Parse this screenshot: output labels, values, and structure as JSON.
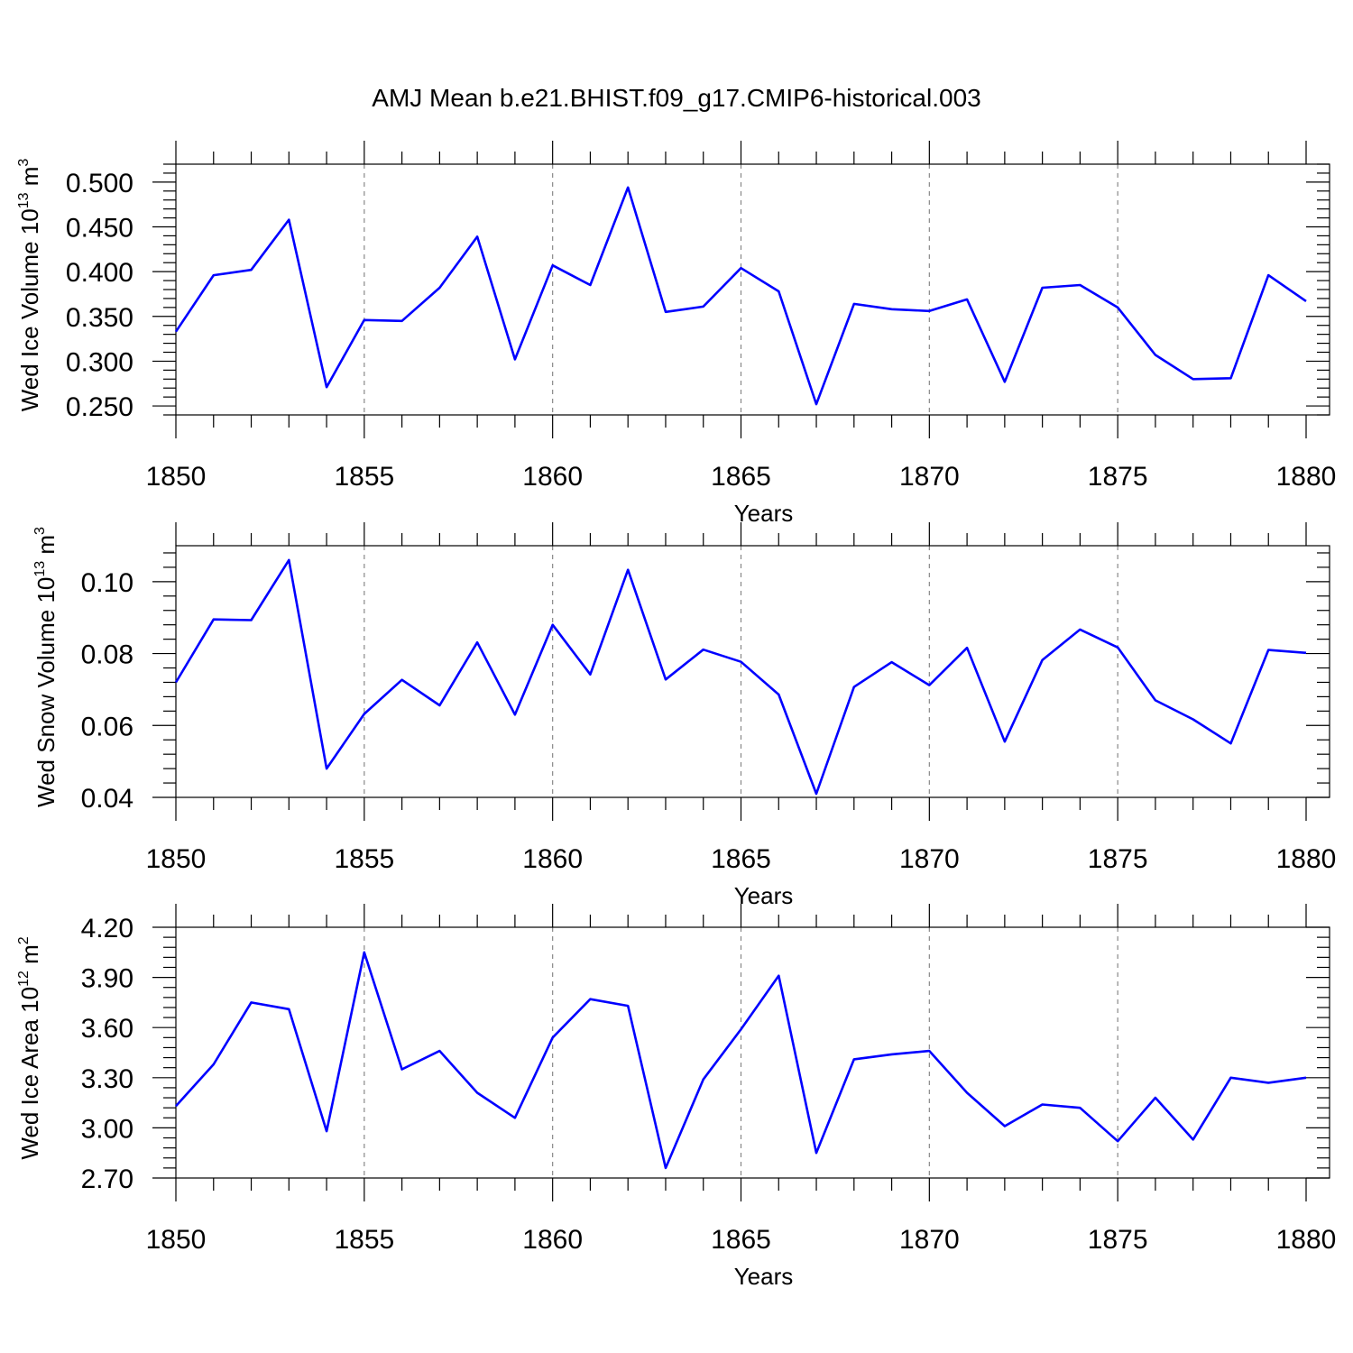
{
  "title": "AMJ Mean b.e21.BHIST.f09_g17.CMIP6-historical.003",
  "colors": {
    "line": "#0000ff",
    "grid": "#888888",
    "axis": "#000000"
  },
  "chart_data": [
    {
      "type": "line",
      "series_name": "Wed Ice Volume",
      "ylabel_main": "Wed Ice Volume 10",
      "ylabel_exp": "13",
      "ylabel_unit": " m",
      "ylabel_unit_exp": "3",
      "xlabel": "Years",
      "xlim": [
        1850,
        1880
      ],
      "ylim": [
        0.24,
        0.52
      ],
      "yticks": [
        0.25,
        0.3,
        0.35,
        0.4,
        0.45,
        0.5
      ],
      "ytick_labels": [
        "0.250",
        "0.300",
        "0.350",
        "0.400",
        "0.450",
        "0.500"
      ],
      "xticks": [
        1850,
        1855,
        1860,
        1865,
        1870,
        1875,
        1880
      ],
      "xtick_labels": [
        "1850",
        "1855",
        "1860",
        "1865",
        "1870",
        "1875",
        "1880"
      ],
      "grid_x": [
        1855,
        1860,
        1865,
        1870,
        1875
      ],
      "x": [
        1850,
        1851,
        1852,
        1853,
        1854,
        1855,
        1856,
        1857,
        1858,
        1859,
        1860,
        1861,
        1862,
        1863,
        1864,
        1865,
        1866,
        1867,
        1868,
        1869,
        1870,
        1871,
        1872,
        1873,
        1874,
        1875,
        1876,
        1877,
        1878,
        1879,
        1880
      ],
      "values": [
        0.333,
        0.396,
        0.402,
        0.458,
        0.271,
        0.346,
        0.345,
        0.382,
        0.439,
        0.302,
        0.407,
        0.385,
        0.494,
        0.355,
        0.361,
        0.404,
        0.378,
        0.252,
        0.364,
        0.358,
        0.356,
        0.369,
        0.277,
        0.382,
        0.385,
        0.36,
        0.307,
        0.28,
        0.281,
        0.396,
        0.367
      ]
    },
    {
      "type": "line",
      "series_name": "Wed Snow Volume",
      "ylabel_main": "Wed Snow Volume 10",
      "ylabel_exp": "13",
      "ylabel_unit": " m",
      "ylabel_unit_exp": "3",
      "xlabel": "Years",
      "xlim": [
        1850,
        1880
      ],
      "ylim": [
        0.04,
        0.11
      ],
      "yticks": [
        0.04,
        0.06,
        0.08,
        0.1
      ],
      "ytick_labels": [
        "0.04",
        "0.06",
        "0.08",
        "0.10"
      ],
      "xticks": [
        1850,
        1855,
        1860,
        1865,
        1870,
        1875,
        1880
      ],
      "xtick_labels": [
        "1850",
        "1855",
        "1860",
        "1865",
        "1870",
        "1875",
        "1880"
      ],
      "grid_x": [
        1855,
        1860,
        1865,
        1870,
        1875
      ],
      "x": [
        1850,
        1851,
        1852,
        1853,
        1854,
        1855,
        1856,
        1857,
        1858,
        1859,
        1860,
        1861,
        1862,
        1863,
        1864,
        1865,
        1866,
        1867,
        1868,
        1869,
        1870,
        1871,
        1872,
        1873,
        1874,
        1875,
        1876,
        1877,
        1878,
        1879,
        1880
      ],
      "values": [
        0.072,
        0.0895,
        0.0893,
        0.106,
        0.048,
        0.0632,
        0.0727,
        0.0656,
        0.0831,
        0.063,
        0.088,
        0.0742,
        0.1033,
        0.0728,
        0.0811,
        0.0777,
        0.0686,
        0.041,
        0.0707,
        0.0776,
        0.0712,
        0.0816,
        0.0555,
        0.0782,
        0.0867,
        0.0817,
        0.067,
        0.0617,
        0.055,
        0.081,
        0.0802
      ]
    },
    {
      "type": "line",
      "series_name": "Wed Ice Area",
      "ylabel_main": "Wed Ice Area 10",
      "ylabel_exp": "12",
      "ylabel_unit": " m",
      "ylabel_unit_exp": "2",
      "xlabel": "Years",
      "xlim": [
        1850,
        1880
      ],
      "ylim": [
        2.7,
        4.2
      ],
      "yticks": [
        2.7,
        3.0,
        3.3,
        3.6,
        3.9,
        4.2
      ],
      "ytick_labels": [
        "2.70",
        "3.00",
        "3.30",
        "3.60",
        "3.90",
        "4.20"
      ],
      "xticks": [
        1850,
        1855,
        1860,
        1865,
        1870,
        1875,
        1880
      ],
      "xtick_labels": [
        "1850",
        "1855",
        "1860",
        "1865",
        "1870",
        "1875",
        "1880"
      ],
      "grid_x": [
        1855,
        1860,
        1865,
        1870,
        1875
      ],
      "x": [
        1850,
        1851,
        1852,
        1853,
        1854,
        1855,
        1856,
        1857,
        1858,
        1859,
        1860,
        1861,
        1862,
        1863,
        1864,
        1865,
        1866,
        1867,
        1868,
        1869,
        1870,
        1871,
        1872,
        1873,
        1874,
        1875,
        1876,
        1877,
        1878,
        1879,
        1880
      ],
      "values": [
        3.13,
        3.38,
        3.75,
        3.71,
        2.98,
        4.05,
        3.35,
        3.46,
        3.21,
        3.06,
        3.54,
        3.77,
        3.73,
        2.76,
        3.29,
        3.59,
        3.91,
        2.85,
        3.41,
        3.44,
        3.46,
        3.21,
        3.01,
        3.14,
        3.12,
        2.92,
        3.18,
        2.93,
        3.3,
        3.27,
        3.3
      ]
    }
  ]
}
